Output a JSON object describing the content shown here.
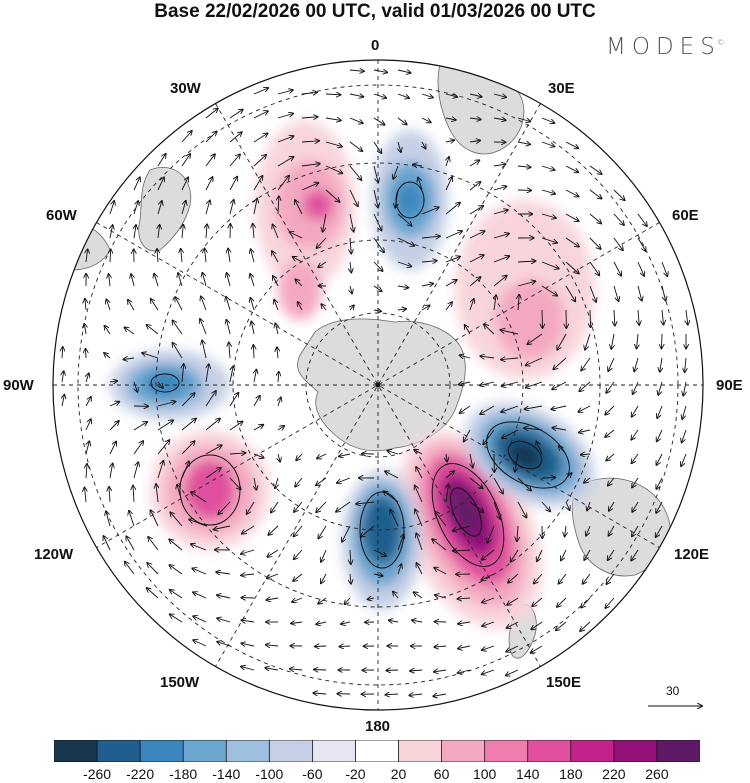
{
  "title": "Base 22/02/2026 00 UTC, valid 01/03/2026 00 UTC",
  "brand": "MODES",
  "brand_mark": "©",
  "map": {
    "projection": "south-polar-stereographic",
    "longitude_labels": {
      "top": "0",
      "top_right": "30E",
      "right_upper": "60E",
      "right": "90E",
      "right_lower": "120E",
      "bottom_right": "150E",
      "bottom": "180",
      "bottom_left": "150W",
      "left_lower": "120W",
      "left": "90W",
      "left_upper": "60W",
      "top_left": "30W"
    },
    "reference_vector": "30",
    "anomaly_centers": [
      {
        "lon": "140E",
        "sign": "positive",
        "value": 260
      },
      {
        "lon": "110E",
        "sign": "negative",
        "value": -240
      },
      {
        "lon": "175E",
        "sign": "negative",
        "value": -200
      },
      {
        "lon": "120W",
        "sign": "positive",
        "value": 180
      },
      {
        "lon": "90W",
        "sign": "negative",
        "value": -140
      },
      {
        "lon": "20W",
        "sign": "positive",
        "value": 140
      },
      {
        "lon": "20E",
        "sign": "negative",
        "value": -160
      },
      {
        "lon": "60E",
        "sign": "positive",
        "value": 120
      }
    ]
  },
  "colorbar": {
    "ticks": [
      "-260",
      "-220",
      "-180",
      "-140",
      "-100",
      "-60",
      "-20",
      "20",
      "60",
      "100",
      "140",
      "180",
      "220",
      "260"
    ],
    "colors": [
      "#17364f",
      "#1f5e8e",
      "#3a86bd",
      "#6aa6d0",
      "#9fbfdf",
      "#c6cfe6",
      "#e6e6f2",
      "#ffffff",
      "#f8d5db",
      "#f4a9c0",
      "#ef7eae",
      "#e04f9d",
      "#c5218b",
      "#96107a",
      "#5e1a66"
    ]
  }
}
